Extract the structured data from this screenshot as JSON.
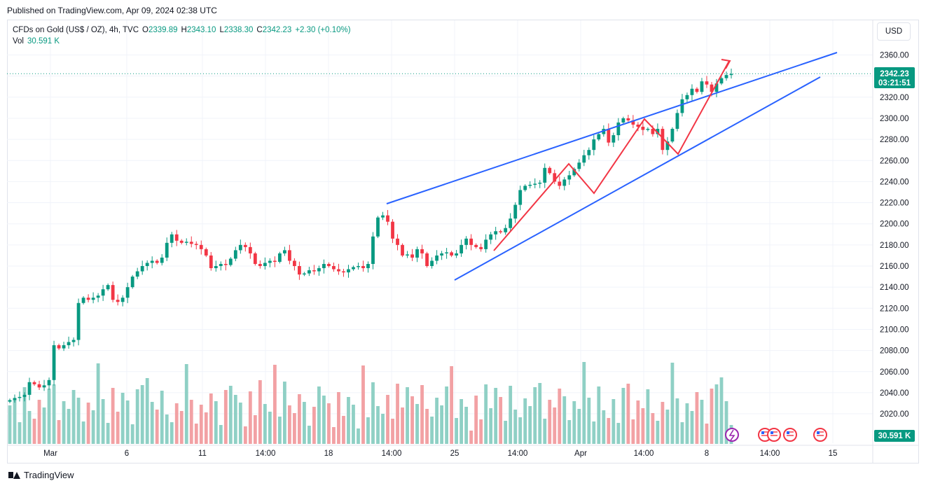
{
  "header": {
    "published": "Published on TradingView.com, Apr 09, 2024 02:38 UTC",
    "currency": "USD",
    "footer_brand": "TradingView"
  },
  "legend": {
    "symbol": "CFDs on Gold (US$ / OZ), 4h, TVC",
    "o_label": "O",
    "o_value": "2339.89",
    "h_label": "H",
    "h_value": "2343.10",
    "l_label": "L",
    "l_value": "2338.30",
    "c_label": "C",
    "c_value": "2342.23",
    "change": "+2.30 (+0.10%)",
    "vol_label": "Vol",
    "vol_value": "30.591 K"
  },
  "colors": {
    "up": "#089981",
    "down": "#f23645",
    "vol_up": "#8fd0c5",
    "vol_down": "#f2a1a4",
    "trend": "#2962ff",
    "pattern": "#f23645"
  },
  "icons": [
    "flash-icon",
    "us-flag-icon"
  ],
  "chart_data": {
    "type": "candlestick",
    "symbol": "CFDs on Gold (US$ / OZ)",
    "interval": "4h",
    "y_axis": {
      "ticks": [
        2020,
        2040,
        2060,
        2080,
        2100,
        2120,
        2140,
        2160,
        2180,
        2200,
        2220,
        2240,
        2260,
        2280,
        2300,
        2320,
        2340,
        2360
      ],
      "range": [
        2010,
        2370
      ]
    },
    "x_axis": {
      "ticks": [
        "Mar",
        "6",
        "11",
        "14:00",
        "18",
        "14:00",
        "25",
        "14:00",
        "Apr",
        "14:00",
        "8",
        "14:00",
        "15"
      ]
    },
    "last_price": {
      "value": "2342.23",
      "countdown": "03:21:51"
    },
    "volume_tag": "30.591 K",
    "close_series": [
      2033,
      2035,
      2036,
      2038,
      2050,
      2048,
      2045,
      2047,
      2052,
      2085,
      2082,
      2085,
      2088,
      2090,
      2125,
      2130,
      2128,
      2130,
      2132,
      2138,
      2142,
      2128,
      2126,
      2130,
      2140,
      2150,
      2155,
      2160,
      2163,
      2165,
      2163,
      2168,
      2182,
      2190,
      2184,
      2182,
      2183,
      2181,
      2180,
      2176,
      2170,
      2158,
      2160,
      2162,
      2161,
      2167,
      2175,
      2180,
      2178,
      2172,
      2162,
      2160,
      2163,
      2165,
      2164,
      2172,
      2175,
      2165,
      2160,
      2152,
      2153,
      2156,
      2155,
      2158,
      2162,
      2160,
      2157,
      2155,
      2154,
      2157,
      2159,
      2160,
      2158,
      2162,
      2188,
      2206,
      2208,
      2202,
      2186,
      2180,
      2170,
      2171,
      2168,
      2176,
      2172,
      2160,
      2165,
      2170,
      2172,
      2173,
      2170,
      2172,
      2180,
      2186,
      2180,
      2178,
      2176,
      2185,
      2190,
      2193,
      2192,
      2196,
      2205,
      2218,
      2232,
      2236,
      2237,
      2238,
      2239,
      2253,
      2248,
      2240,
      2236,
      2242,
      2246,
      2252,
      2258,
      2265,
      2270,
      2280,
      2285,
      2290,
      2277,
      2284,
      2296,
      2300,
      2298,
      2294,
      2292,
      2289,
      2290,
      2285,
      2290,
      2270,
      2278,
      2290,
      2305,
      2318,
      2322,
      2328,
      2325,
      2335,
      2332,
      2325,
      2333,
      2338,
      2341,
      2342
    ]
  }
}
